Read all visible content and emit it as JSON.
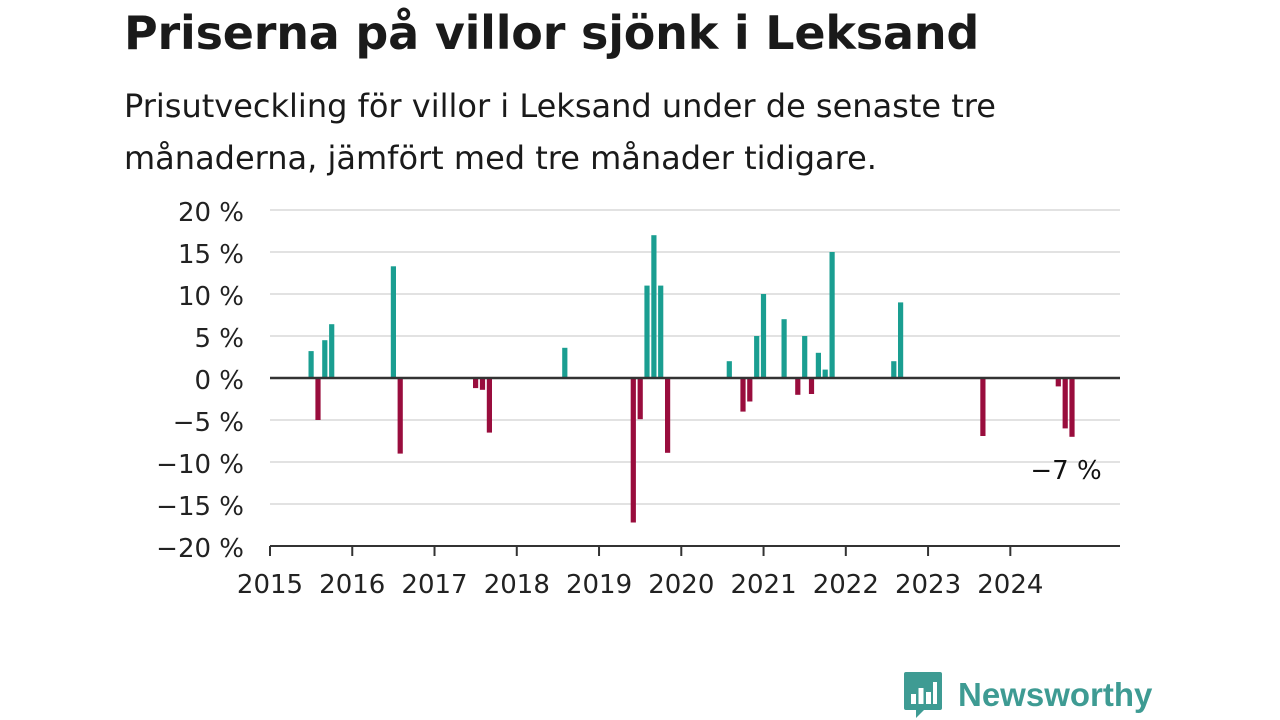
{
  "title": "Priserna på villor sjönk i Leksand",
  "subtitle": "Prisutveckling för villor i Leksand under de senaste tre månaderna, jämfört med tre månader tidigare.",
  "brand": {
    "name": "Newsworthy",
    "icon": "newsworthy-logo-icon",
    "color": "#3e9b93"
  },
  "colors": {
    "positive": "#1a9e91",
    "negative": "#990d3d",
    "grid": "#d9d9d9",
    "axis": "#333333"
  },
  "chart_data": {
    "type": "bar",
    "ylim": [
      -20,
      20
    ],
    "yticks": [
      20,
      15,
      10,
      5,
      0,
      -5,
      -10,
      -15,
      -20
    ],
    "ytick_labels": [
      "20 %",
      "15 %",
      "10 %",
      "5 %",
      "0 %",
      "−5 %",
      "−10 %",
      "−15 %",
      "−20 %"
    ],
    "xlim": [
      "2015-01",
      "2025-05"
    ],
    "xticks": [
      "2015-01",
      "2016-01",
      "2017-01",
      "2018-01",
      "2019-01",
      "2020-01",
      "2021-01",
      "2022-01",
      "2023-01",
      "2024-01"
    ],
    "xtick_labels": [
      "2015",
      "2016",
      "2017",
      "2018",
      "2019",
      "2020",
      "2021",
      "2022",
      "2023",
      "2024"
    ],
    "grid": true,
    "legend": "none",
    "annotation": {
      "text": "−7 %",
      "month": "2024-10"
    },
    "series": [
      {
        "x": [
          "2015-07",
          "2015-08",
          "2015-09",
          "2015-10",
          "2016-07",
          "2016-08",
          "2017-07",
          "2017-08",
          "2017-09",
          "2018-08",
          "2019-06",
          "2019-07",
          "2019-08",
          "2019-09",
          "2019-10",
          "2019-11",
          "2020-08",
          "2020-10",
          "2020-11",
          "2020-12",
          "2021-01",
          "2021-04",
          "2021-06",
          "2021-07",
          "2021-08",
          "2021-09",
          "2021-10",
          "2021-11",
          "2022-08",
          "2022-09",
          "2023-09",
          "2024-08",
          "2024-09",
          "2024-10"
        ],
        "values": [
          3.2,
          -5,
          4.5,
          6.4,
          13.3,
          -9,
          -1.2,
          -1.4,
          -6.5,
          3.6,
          -17.2,
          -4.9,
          11,
          17,
          11,
          -8.9,
          2,
          -4,
          -2.8,
          5,
          10,
          7,
          -2,
          5,
          -1.9,
          3,
          1,
          15,
          2,
          9,
          -6.9,
          -1,
          -6,
          -7
        ]
      }
    ]
  }
}
